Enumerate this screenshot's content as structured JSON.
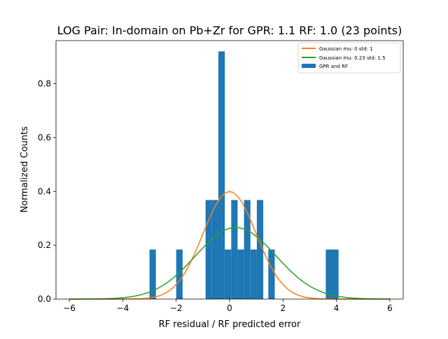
{
  "chart_data": {
    "type": "bar",
    "title": "LOG Pair: In-domain on Pb+Zr for GPR: 1.1 RF: 1.0 (23 points)",
    "xlabel": "RF residual / RF predicted error",
    "ylabel": "Normalized Counts",
    "xlim": [
      -6.5,
      6.5
    ],
    "ylim": [
      0,
      0.96
    ],
    "xticks": [
      -6,
      -4,
      -2,
      0,
      2,
      4,
      6
    ],
    "xtick_labels": [
      "−6",
      "−4",
      "−2",
      "0",
      "2",
      "4",
      "6"
    ],
    "yticks": [
      0.0,
      0.2,
      0.4,
      0.6,
      0.8
    ],
    "ytick_labels": [
      "0.0",
      "0.2",
      "0.4",
      "0.6",
      "0.8"
    ],
    "legend_position": "top-right",
    "histogram": {
      "name": "GPR and RF",
      "color": "#1f77b4",
      "bins": [
        {
          "x0": -3.0,
          "x1": -2.76,
          "value": 0.184
        },
        {
          "x0": -2.0,
          "x1": -1.76,
          "value": 0.184
        },
        {
          "x0": -0.9,
          "x1": -0.66,
          "value": 0.368
        },
        {
          "x0": -0.66,
          "x1": -0.42,
          "value": 0.368
        },
        {
          "x0": -0.42,
          "x1": -0.18,
          "value": 0.92
        },
        {
          "x0": -0.18,
          "x1": 0.06,
          "value": 0.184
        },
        {
          "x0": 0.06,
          "x1": 0.3,
          "value": 0.368
        },
        {
          "x0": 0.3,
          "x1": 0.54,
          "value": 0.184
        },
        {
          "x0": 0.54,
          "x1": 0.78,
          "value": 0.368
        },
        {
          "x0": 0.78,
          "x1": 1.02,
          "value": 0.184
        },
        {
          "x0": 1.02,
          "x1": 1.26,
          "value": 0.368
        },
        {
          "x0": 1.45,
          "x1": 1.69,
          "value": 0.184
        },
        {
          "x0": 3.6,
          "x1": 3.84,
          "value": 0.184
        },
        {
          "x0": 3.84,
          "x1": 4.08,
          "value": 0.184
        }
      ]
    },
    "series": [
      {
        "name": "Gaussian mu: 0 std: 1",
        "type": "line",
        "mu": 0,
        "std": 1,
        "x_range": [
          -6,
          6
        ],
        "color": "#ff7f0e"
      },
      {
        "name": "Gaussian mu: 0.23 std: 1.5",
        "type": "line",
        "mu": 0.23,
        "std": 1.5,
        "x_range": [
          -6,
          6
        ],
        "color": "#2ca02c"
      }
    ]
  }
}
